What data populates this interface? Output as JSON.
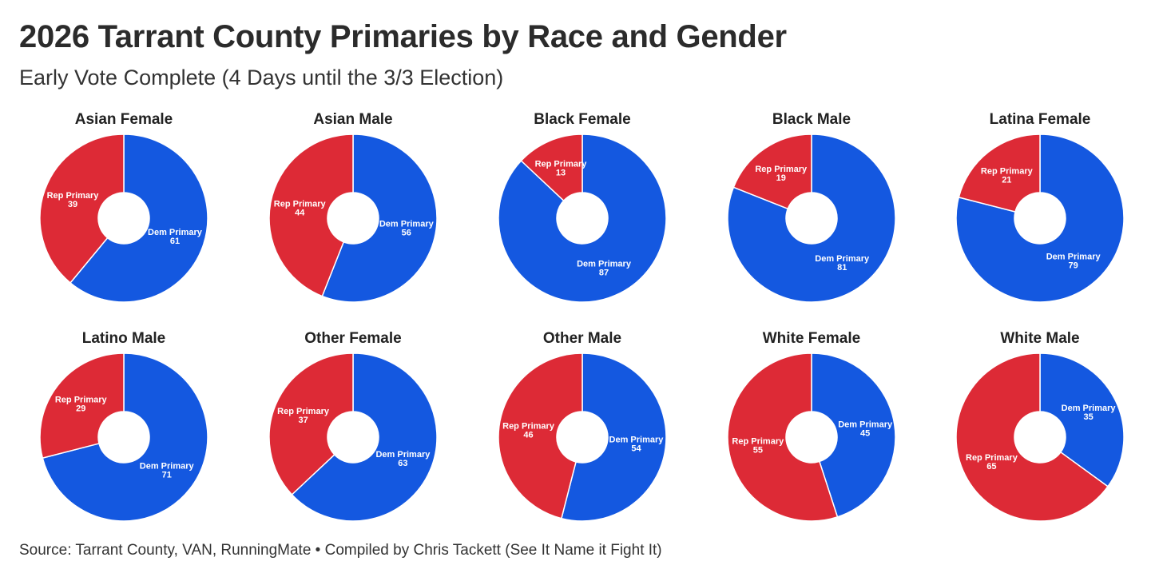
{
  "header": {
    "title": "2026 Tarrant County Primaries by Race and Gender",
    "subtitle": "Early Vote Complete (4 Days until the 3/3 Election)"
  },
  "footer": {
    "source": "Source: Tarrant County, VAN, RunningMate • Compiled by Chris Tackett (See It Name it Fight It)"
  },
  "colors": {
    "rep": "#dd2a36",
    "dem": "#1458e0",
    "label": "#ffffff"
  },
  "chart_data": [
    {
      "type": "pie",
      "title": "Asian Female",
      "series": [
        {
          "name": "Rep Primary",
          "value": 39
        },
        {
          "name": "Dem Primary",
          "value": 61
        }
      ]
    },
    {
      "type": "pie",
      "title": "Asian Male",
      "series": [
        {
          "name": "Rep Primary",
          "value": 44
        },
        {
          "name": "Dem Primary",
          "value": 56
        }
      ]
    },
    {
      "type": "pie",
      "title": "Black Female",
      "series": [
        {
          "name": "Rep Primary",
          "value": 13
        },
        {
          "name": "Dem Primary",
          "value": 87
        }
      ]
    },
    {
      "type": "pie",
      "title": "Black Male",
      "series": [
        {
          "name": "Rep Primary",
          "value": 19
        },
        {
          "name": "Dem Primary",
          "value": 81
        }
      ]
    },
    {
      "type": "pie",
      "title": "Latina Female",
      "series": [
        {
          "name": "Rep Primary",
          "value": 21
        },
        {
          "name": "Dem Primary",
          "value": 79
        }
      ]
    },
    {
      "type": "pie",
      "title": "Latino Male",
      "series": [
        {
          "name": "Rep Primary",
          "value": 29
        },
        {
          "name": "Dem Primary",
          "value": 71
        }
      ]
    },
    {
      "type": "pie",
      "title": "Other Female",
      "series": [
        {
          "name": "Rep Primary",
          "value": 37
        },
        {
          "name": "Dem Primary",
          "value": 63
        }
      ]
    },
    {
      "type": "pie",
      "title": "Other Male",
      "series": [
        {
          "name": "Rep Primary",
          "value": 46
        },
        {
          "name": "Dem Primary",
          "value": 54
        }
      ]
    },
    {
      "type": "pie",
      "title": "White Female",
      "series": [
        {
          "name": "Rep Primary",
          "value": 55
        },
        {
          "name": "Dem Primary",
          "value": 45
        }
      ]
    },
    {
      "type": "pie",
      "title": "White Male",
      "series": [
        {
          "name": "Rep Primary",
          "value": 65
        },
        {
          "name": "Dem Primary",
          "value": 35
        }
      ]
    }
  ]
}
